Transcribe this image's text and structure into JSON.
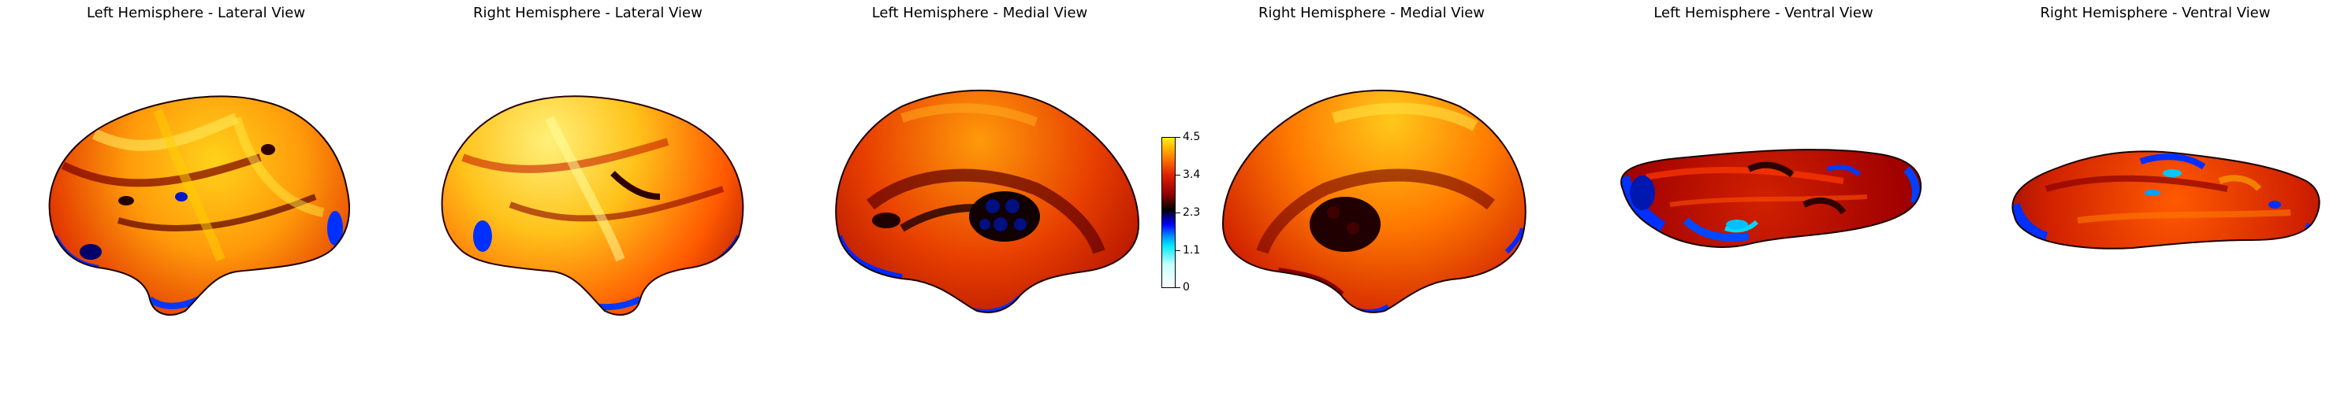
{
  "panels": [
    {
      "title": "Left Hemisphere - Lateral View"
    },
    {
      "title": "Right Hemisphere - Lateral View"
    },
    {
      "title": "Left Hemisphere - Medial View"
    },
    {
      "title": "Right Hemisphere - Medial View"
    },
    {
      "title": "Left Hemisphere - Ventral View"
    },
    {
      "title": "Right Hemisphere - Ventral View"
    }
  ],
  "colorbar": {
    "ticks": [
      "4.5",
      "3.4",
      "2.3",
      "1.1",
      "0"
    ],
    "colors": {
      "top": "#fff200",
      "upper": "#ff6a00",
      "mid": "#b00000",
      "dark": "#000000",
      "blue": "#0000ff",
      "cyan": "#00e8ff",
      "bottom": "#ffffff"
    }
  }
}
